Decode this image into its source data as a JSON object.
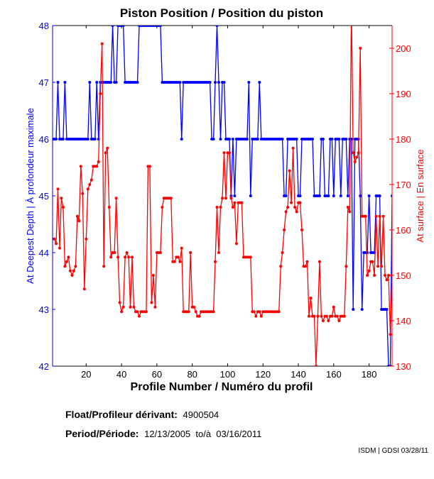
{
  "chart_data": {
    "type": "line",
    "title": "Piston Position / Position du piston",
    "xlabel": "Profile Number / Numéro du profil",
    "ylabel_left": "At Deepest Depth | À profondeur maximale",
    "ylabel_right": "At surface | En surface",
    "xlim": [
      1,
      193
    ],
    "ylim_left": [
      42,
      48
    ],
    "ylim_right": [
      130,
      205
    ],
    "xticks": [
      20,
      40,
      60,
      80,
      100,
      120,
      140,
      160,
      180
    ],
    "yticks_left": [
      42,
      43,
      44,
      45,
      46,
      47,
      48
    ],
    "yticks_right": [
      130,
      140,
      150,
      160,
      170,
      180,
      190,
      200
    ],
    "grid": false,
    "series": [
      {
        "name": "At Deepest Depth",
        "axis": "left",
        "color": "#0000ff",
        "values": [
          46,
          46,
          46,
          47,
          46,
          46,
          46,
          47,
          46,
          46,
          46,
          46,
          46,
          46,
          46,
          46,
          46,
          46,
          46,
          46,
          46,
          47,
          46,
          46,
          46,
          47,
          46,
          47,
          47,
          47,
          47,
          47,
          47,
          47,
          48,
          47,
          47,
          48,
          48,
          48,
          48,
          47,
          47,
          47,
          47,
          47,
          47,
          47,
          47,
          48,
          48,
          48,
          48,
          48,
          48,
          48,
          48,
          48,
          48,
          48,
          48,
          48,
          47,
          47,
          47,
          47,
          47,
          47,
          47,
          47,
          47,
          47,
          47,
          46,
          47,
          47,
          47,
          47,
          47,
          47,
          47,
          47,
          47,
          47,
          47,
          47,
          47,
          47,
          47,
          47,
          46,
          46,
          47,
          48,
          47,
          46,
          47,
          47,
          46,
          46,
          46,
          45,
          46,
          45,
          46,
          46,
          46,
          46,
          46,
          46,
          46,
          47,
          45,
          46,
          46,
          46,
          46,
          47,
          46,
          46,
          46,
          46,
          46,
          46,
          46,
          46,
          46,
          46,
          46,
          46,
          46,
          45,
          45,
          46,
          46,
          46,
          46,
          46,
          46,
          45,
          45,
          46,
          46,
          46,
          46,
          46,
          46,
          46,
          45,
          45,
          45,
          45,
          46,
          46,
          45,
          45,
          45,
          46,
          46,
          45,
          46,
          46,
          46,
          45,
          46,
          46,
          46,
          45,
          46,
          46,
          43,
          46,
          46,
          46,
          45,
          43,
          44,
          44,
          44,
          45,
          44,
          44,
          44,
          45,
          45,
          45,
          43,
          43,
          43,
          43,
          42,
          42,
          45
        ]
      },
      {
        "name": "At surface",
        "axis": "right",
        "color": "#ff0000",
        "values": [
          158,
          158,
          157,
          169,
          156,
          167,
          165,
          152,
          153,
          154,
          151,
          150,
          151,
          152,
          163,
          162,
          174,
          168,
          147,
          158,
          169,
          170,
          171,
          174,
          174,
          174,
          175,
          190,
          201,
          152,
          177,
          178,
          165,
          154,
          155,
          155,
          167,
          154,
          144,
          142,
          143,
          154,
          155,
          154,
          143,
          154,
          143,
          142,
          142,
          141,
          142,
          142,
          142,
          142,
          174,
          174,
          144,
          150,
          143,
          155,
          155,
          155,
          165,
          167,
          167,
          167,
          167,
          167,
          153,
          153,
          154,
          154,
          153,
          156,
          142,
          142,
          142,
          142,
          155,
          143,
          143,
          142,
          141,
          141,
          142,
          142,
          142,
          142,
          142,
          142,
          142,
          142,
          153,
          165,
          155,
          165,
          167,
          177,
          167,
          177,
          177,
          167,
          165,
          166,
          157,
          166,
          166,
          166,
          154,
          154,
          154,
          154,
          154,
          142,
          142,
          141,
          142,
          142,
          141,
          142,
          142,
          142,
          142,
          142,
          142,
          142,
          142,
          142,
          142,
          152,
          155,
          160,
          164,
          165,
          173,
          166,
          178,
          165,
          164,
          166,
          166,
          160,
          152,
          152,
          153,
          141,
          145,
          141,
          141,
          130,
          141,
          153,
          141,
          140,
          141,
          141,
          140,
          141,
          141,
          143,
          141,
          141,
          140,
          141,
          141,
          141,
          152,
          165,
          164,
          210,
          177,
          175,
          176,
          177,
          200,
          163,
          163,
          163,
          150,
          151,
          153,
          153,
          150,
          163,
          152,
          163,
          152,
          163,
          150,
          149,
          150,
          137,
          150
        ]
      }
    ]
  },
  "info": {
    "float_label": "Float/Profileur dérivant:",
    "float_value": "4900504",
    "period_label": "Period/Période:",
    "period_value": "12/13/2005  to/à  03/16/2011"
  },
  "footer": "ISDM | GDSI 03/28/11"
}
